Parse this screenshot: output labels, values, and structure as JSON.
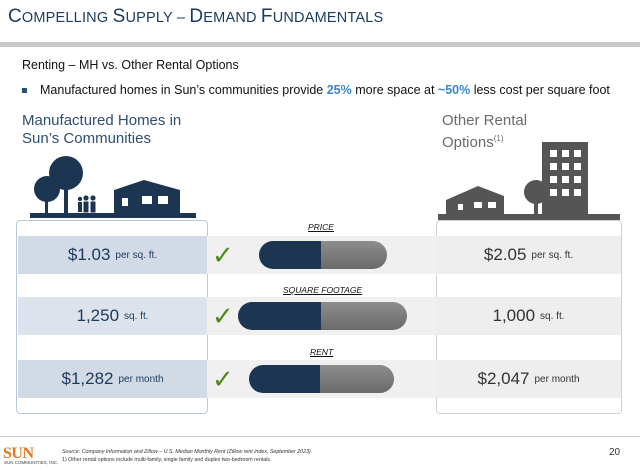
{
  "header": {
    "title_c": "C",
    "title_rest1": "OMPELLING ",
    "title_s": "S",
    "title_rest2": "UPPLY – ",
    "title_d": "D",
    "title_rest3": "EMAND ",
    "title_f": "F",
    "title_rest4": "UNDAMENTALS"
  },
  "subheading": "Renting – MH vs. Other Rental Options",
  "bullet": {
    "pre": "Manufactured homes in Sun’s communities provide ",
    "hl1": "25%",
    "mid": " more space at ",
    "hl2": "~50%",
    "post": " less cost per square foot"
  },
  "left_heading": {
    "line1": "Manufactured Homes in",
    "line2": "Sun’s Communities"
  },
  "right_heading": {
    "line1": "Other Rental",
    "line2": "Options",
    "footnote_ref": "(1)"
  },
  "rows": [
    {
      "label": "PRICE",
      "left_value": "$1.03",
      "left_unit": "per sq. ft.",
      "right_value": "$2.05",
      "right_unit": "per sq. ft.",
      "check": "✓"
    },
    {
      "label": "SQUARE FOOTAGE",
      "left_value": "1,250",
      "left_unit": "sq. ft.",
      "right_value": "1,000",
      "right_unit": "sq. ft.",
      "check": "✓"
    },
    {
      "label": "RENT",
      "left_value": "$1,282",
      "left_unit": "per month",
      "right_value": "$2,047",
      "right_unit": "per month",
      "check": "✓"
    }
  ],
  "footer": {
    "logo_text": "SUN",
    "logo_sub": "SUN COMMUNITIES, INC.",
    "source": "Source: Company Information and Zillow – U.S. Median Monthly Rent (Zillow rent index, September 2023).",
    "footnote": "1)      Other rental options include multi-family, single family and duplex two-bedroom rentals.",
    "page_number": "20"
  },
  "colors": {
    "navy": "#1c3550",
    "accent_blue": "#3d86c7",
    "check_green": "#4f8a1b",
    "logo_orange": "#e8741f"
  },
  "icons": [
    "manufactured-home-illustration-icon",
    "apartment-building-illustration-icon",
    "checkmark-icon"
  ]
}
